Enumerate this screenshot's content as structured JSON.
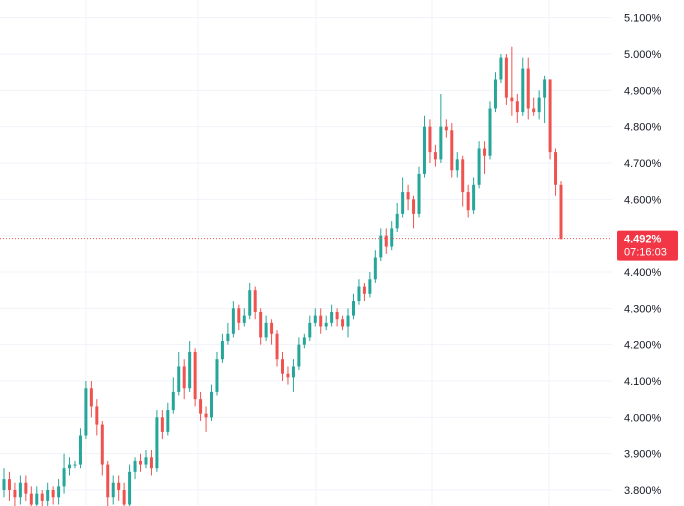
{
  "chart_data": {
    "type": "candlestick",
    "ylim": [
      3.76,
      5.14
    ],
    "y_ticks": [
      "5.100%",
      "5.000%",
      "4.900%",
      "4.800%",
      "4.700%",
      "4.600%",
      "4.400%",
      "4.300%",
      "4.200%",
      "4.100%",
      "4.000%",
      "3.900%",
      "3.800%"
    ],
    "y_tick_values": [
      5.1,
      5.0,
      4.9,
      4.8,
      4.7,
      4.6,
      4.4,
      4.3,
      4.2,
      4.1,
      4.0,
      3.9,
      3.8
    ],
    "grid": true,
    "current_price": {
      "value": 4.492,
      "label": "4.492%",
      "countdown": "07:16:03"
    },
    "colors": {
      "up": "#26a69a",
      "down": "#ef5350",
      "grid": "#f0f3fa",
      "price_line": "#ef5350",
      "price_tag": "#f23645"
    },
    "candles": [
      [
        3.8,
        3.83,
        3.86,
        3.78
      ],
      [
        3.83,
        3.8,
        3.85,
        3.77
      ],
      [
        3.8,
        3.78,
        3.82,
        3.74
      ],
      [
        3.78,
        3.82,
        3.84,
        3.76
      ],
      [
        3.82,
        3.79,
        3.84,
        3.77
      ],
      [
        3.79,
        3.76,
        3.81,
        3.73
      ],
      [
        3.76,
        3.79,
        3.81,
        3.74
      ],
      [
        3.79,
        3.77,
        3.8,
        3.75
      ],
      [
        3.77,
        3.8,
        3.82,
        3.75
      ],
      [
        3.8,
        3.78,
        3.81,
        3.76
      ],
      [
        3.78,
        3.81,
        3.83,
        3.76
      ],
      [
        3.81,
        3.86,
        3.9,
        3.79
      ],
      [
        3.86,
        3.87,
        3.89,
        3.84
      ],
      [
        3.87,
        3.87,
        3.88,
        3.86
      ],
      [
        3.87,
        3.95,
        3.97,
        3.86
      ],
      [
        3.95,
        4.08,
        4.1,
        3.94
      ],
      [
        4.08,
        4.03,
        4.1,
        4.0
      ],
      [
        4.03,
        3.98,
        4.05,
        3.95
      ],
      [
        3.98,
        3.87,
        3.99,
        3.84
      ],
      [
        3.87,
        3.78,
        3.88,
        3.75
      ],
      [
        3.78,
        3.82,
        3.84,
        3.76
      ],
      [
        3.82,
        3.8,
        3.84,
        3.77
      ],
      [
        3.8,
        3.76,
        3.82,
        3.73
      ],
      [
        3.76,
        3.85,
        3.87,
        3.75
      ],
      [
        3.85,
        3.88,
        3.89,
        3.83
      ],
      [
        3.88,
        3.87,
        3.9,
        3.85
      ],
      [
        3.87,
        3.89,
        3.91,
        3.86
      ],
      [
        3.89,
        3.86,
        3.91,
        3.84
      ],
      [
        3.86,
        4.0,
        4.02,
        3.85
      ],
      [
        4.0,
        3.96,
        4.02,
        3.94
      ],
      [
        3.96,
        4.02,
        4.04,
        3.95
      ],
      [
        4.02,
        4.07,
        4.11,
        4.01
      ],
      [
        4.07,
        4.14,
        4.18,
        4.06
      ],
      [
        4.14,
        4.08,
        4.16,
        4.05
      ],
      [
        4.08,
        4.18,
        4.21,
        4.07
      ],
      [
        4.18,
        4.05,
        4.19,
        4.03
      ],
      [
        4.05,
        4.01,
        4.07,
        3.99
      ],
      [
        4.01,
        4.0,
        4.03,
        3.96
      ],
      [
        4.0,
        4.07,
        4.09,
        3.99
      ],
      [
        4.07,
        4.16,
        4.18,
        4.06
      ],
      [
        4.16,
        4.21,
        4.23,
        4.15
      ],
      [
        4.21,
        4.23,
        4.26,
        4.2
      ],
      [
        4.23,
        4.3,
        4.32,
        4.22
      ],
      [
        4.3,
        4.26,
        4.31,
        4.24
      ],
      [
        4.26,
        4.28,
        4.3,
        4.25
      ],
      [
        4.28,
        4.35,
        4.37,
        4.27
      ],
      [
        4.35,
        4.29,
        4.36,
        4.27
      ],
      [
        4.29,
        4.22,
        4.3,
        4.2
      ],
      [
        4.22,
        4.26,
        4.28,
        4.21
      ],
      [
        4.26,
        4.23,
        4.27,
        4.2
      ],
      [
        4.23,
        4.16,
        4.24,
        4.14
      ],
      [
        4.16,
        4.12,
        4.18,
        4.1
      ],
      [
        4.12,
        4.11,
        4.14,
        4.09
      ],
      [
        4.11,
        4.14,
        4.16,
        4.07
      ],
      [
        4.14,
        4.2,
        4.22,
        4.13
      ],
      [
        4.2,
        4.22,
        4.23,
        4.19
      ],
      [
        4.22,
        4.26,
        4.28,
        4.21
      ],
      [
        4.26,
        4.28,
        4.3,
        4.25
      ],
      [
        4.28,
        4.25,
        4.3,
        4.23
      ],
      [
        4.25,
        4.26,
        4.28,
        4.24
      ],
      [
        4.26,
        4.29,
        4.31,
        4.25
      ],
      [
        4.29,
        4.27,
        4.3,
        4.25
      ],
      [
        4.27,
        4.25,
        4.28,
        4.24
      ],
      [
        4.25,
        4.28,
        4.3,
        4.22
      ],
      [
        4.28,
        4.32,
        4.34,
        4.27
      ],
      [
        4.32,
        4.36,
        4.38,
        4.31
      ],
      [
        4.36,
        4.34,
        4.37,
        4.32
      ],
      [
        4.34,
        4.38,
        4.4,
        4.33
      ],
      [
        4.38,
        4.44,
        4.46,
        4.37
      ],
      [
        4.44,
        4.5,
        4.52,
        4.43
      ],
      [
        4.5,
        4.47,
        4.52,
        4.45
      ],
      [
        4.47,
        4.52,
        4.54,
        4.46
      ],
      [
        4.52,
        4.56,
        4.59,
        4.51
      ],
      [
        4.56,
        4.62,
        4.66,
        4.55
      ],
      [
        4.62,
        4.6,
        4.64,
        4.57
      ],
      [
        4.6,
        4.56,
        4.61,
        4.52
      ],
      [
        4.56,
        4.67,
        4.69,
        4.55
      ],
      [
        4.67,
        4.8,
        4.83,
        4.66
      ],
      [
        4.8,
        4.73,
        4.82,
        4.7
      ],
      [
        4.73,
        4.71,
        4.75,
        4.69
      ],
      [
        4.71,
        4.8,
        4.89,
        4.7
      ],
      [
        4.8,
        4.79,
        4.82,
        4.77
      ],
      [
        4.79,
        4.68,
        4.81,
        4.66
      ],
      [
        4.68,
        4.71,
        4.73,
        4.66
      ],
      [
        4.71,
        4.62,
        4.72,
        4.58
      ],
      [
        4.62,
        4.57,
        4.64,
        4.55
      ],
      [
        4.57,
        4.64,
        4.66,
        4.56
      ],
      [
        4.64,
        4.74,
        4.76,
        4.63
      ],
      [
        4.74,
        4.72,
        4.76,
        4.67
      ],
      [
        4.72,
        4.85,
        4.87,
        4.71
      ],
      [
        4.85,
        4.93,
        4.95,
        4.84
      ],
      [
        4.93,
        4.99,
        5.0,
        4.92
      ],
      [
        4.99,
        4.88,
        5.0,
        4.86
      ],
      [
        4.88,
        4.87,
        5.02,
        4.83
      ],
      [
        4.87,
        4.84,
        4.89,
        4.81
      ],
      [
        4.84,
        4.96,
        4.99,
        4.83
      ],
      [
        4.96,
        4.85,
        4.99,
        4.82
      ],
      [
        4.85,
        4.84,
        4.88,
        4.83
      ],
      [
        4.84,
        4.88,
        4.9,
        4.82
      ],
      [
        4.88,
        4.93,
        4.94,
        4.81
      ],
      [
        4.93,
        4.73,
        4.93,
        4.71
      ],
      [
        4.73,
        4.64,
        4.74,
        4.61
      ],
      [
        4.64,
        4.49,
        4.65,
        4.49
      ]
    ]
  }
}
